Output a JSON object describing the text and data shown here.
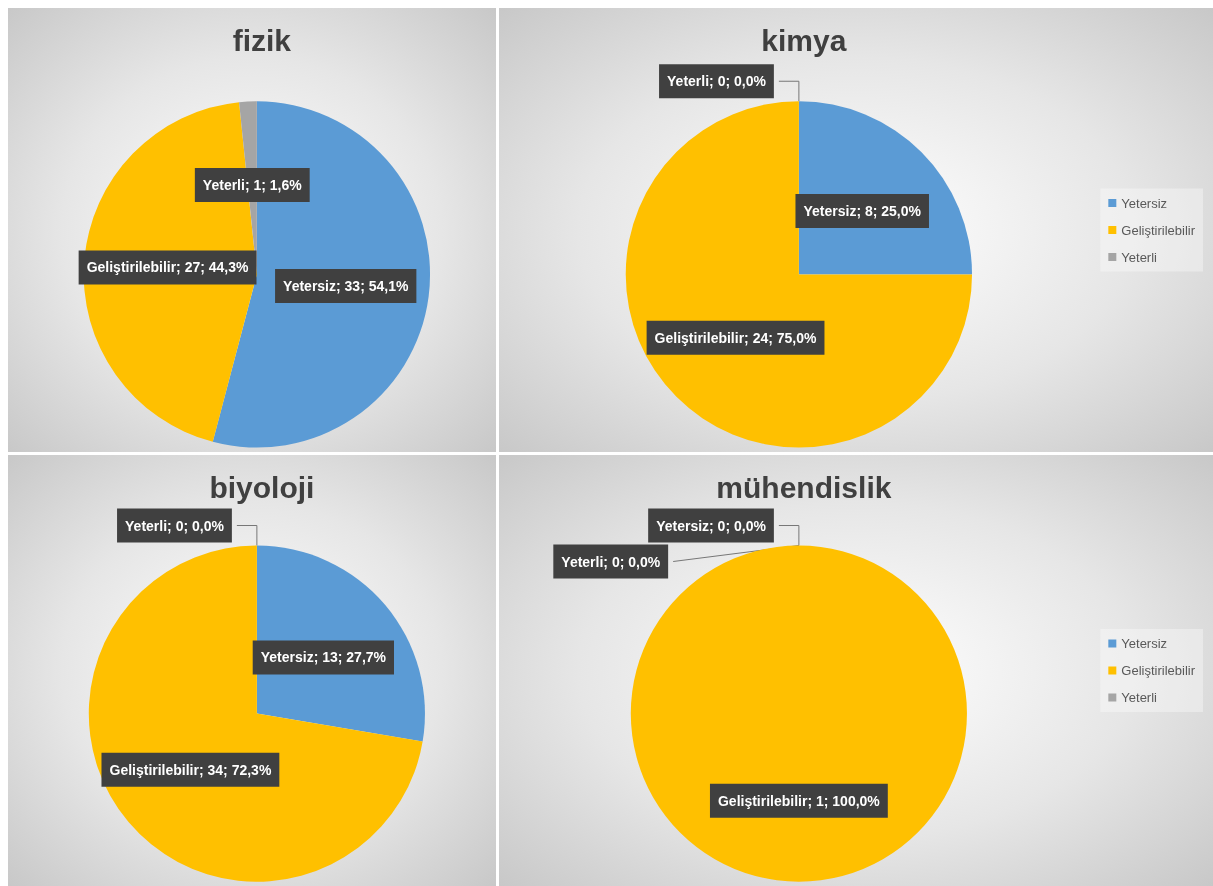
{
  "chart_data": [
    {
      "type": "pie",
      "title": "fizik",
      "categories": [
        "Yetersiz",
        "Geliştirilebilir",
        "Yeterli"
      ],
      "values": [
        33,
        27,
        1
      ],
      "colors": [
        "#5b9bd5",
        "#ffc000",
        "#a5a5a5"
      ],
      "value_labels": [
        "; 33; 54,1%",
        "; 27; 44,3%",
        "; 1; 1,6%"
      ],
      "legend": false
    },
    {
      "type": "pie",
      "title": "kimya",
      "categories": [
        "Yetersiz",
        "Geliştirilebilir",
        "Yeterli"
      ],
      "values": [
        8,
        24,
        0
      ],
      "colors": [
        "#5b9bd5",
        "#ffc000",
        "#a5a5a5"
      ],
      "value_labels": [
        "; 8; 25,0%",
        "; 24; 75,0%",
        "; 0; 0,0%"
      ],
      "legend": "right"
    },
    {
      "type": "pie",
      "title": "biyoloji",
      "categories": [
        "Yetersiz",
        "Geliştirilebilir",
        "Yeterli"
      ],
      "values": [
        13,
        34,
        0
      ],
      "colors": [
        "#5b9bd5",
        "#ffc000",
        "#a5a5a5"
      ],
      "value_labels": [
        "; 13; 27,7%",
        "; 34; 72,3%",
        "; 0; 0,0%"
      ],
      "legend": false
    },
    {
      "type": "pie",
      "title": "mühendislik",
      "categories": [
        "Yetersiz",
        "Geliştirilebilir",
        "Yeterli"
      ],
      "values": [
        0,
        1,
        0
      ],
      "colors": [
        "#5b9bd5",
        "#ffc000",
        "#a5a5a5"
      ],
      "value_labels": [
        "; 0; 0,0%",
        "; 1; 100,0%",
        "; 0; 0,0%"
      ],
      "legend": "right"
    }
  ]
}
